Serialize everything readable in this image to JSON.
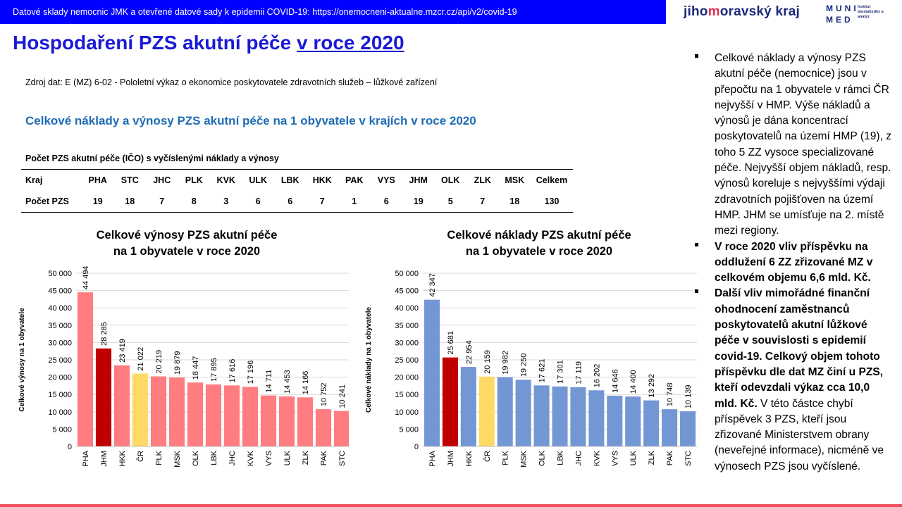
{
  "header": {
    "banner": "Datové sklady nemocnic JMK a otevřené datové sady k epidemii COVID-19: https://onemocneni-aktualne.mzcr.cz/api/v2/covid-19",
    "logo_jmk_a": "jiho",
    "logo_jmk_b": "m",
    "logo_jmk_c": "oravský kraj",
    "logo_muni_1": "MUNI",
    "logo_muni_2": "MED",
    "logo_muni_inst": "Institut biostatistiky a analýz"
  },
  "title_main": "Hospodaření PZS akutní péče ",
  "title_underlined": "v roce 2020",
  "source": "Zdroj dat: E (MZ) 6-02 - Pololetní výkaz o ekonomice poskytovatele zdravotních služeb – lůžkové zařízení",
  "subtitle": "Celkové náklady a výnosy PZS akutní péče na 1 obyvatele v krajích v roce 2020",
  "count_table": {
    "title": "Počet PZS akutní péče (IČO) s vyčíslenými náklady a výnosy",
    "header_label": "Kraj",
    "row_label": "Počet PZS",
    "columns": [
      "PHA",
      "STC",
      "JHC",
      "PLK",
      "KVK",
      "ULK",
      "LBK",
      "HKK",
      "PAK",
      "VYS",
      "JHM",
      "OLK",
      "ZLK",
      "MSK",
      "Celkem"
    ],
    "values": [
      "19",
      "18",
      "7",
      "8",
      "3",
      "6",
      "6",
      "7",
      "1",
      "6",
      "19",
      "5",
      "7",
      "18",
      "130"
    ]
  },
  "chart_data": [
    {
      "type": "bar",
      "title_line1": "Celkové výnosy PZS akutní péče",
      "title_line2": "na 1 obyvatele v roce 2020",
      "ylabel": "Celkové výnosy na 1 obyvatele",
      "ylim": [
        0,
        50000
      ],
      "yticks": [
        0,
        5000,
        10000,
        15000,
        20000,
        25000,
        30000,
        35000,
        40000,
        45000,
        50000
      ],
      "ytick_labels": [
        "0",
        "5 000",
        "10 000",
        "15 000",
        "20 000",
        "25 000",
        "30 000",
        "35 000",
        "40 000",
        "45 000",
        "50 000"
      ],
      "grid": true,
      "categories": [
        "PHA",
        "JHM",
        "HKK",
        "ČR",
        "PLK",
        "MSK",
        "OLK",
        "LBK",
        "JHC",
        "KVK",
        "VYS",
        "ULK",
        "ZLK",
        "PAK",
        "STC"
      ],
      "values": [
        44494,
        28285,
        23419,
        21022,
        20219,
        19879,
        18447,
        17895,
        17616,
        17196,
        14711,
        14453,
        14166,
        10752,
        10241
      ],
      "value_labels": [
        "44 494",
        "28 285",
        "23 419",
        "21 022",
        "20 219",
        "19 879",
        "18 447",
        "17 895",
        "17 616",
        "17 196",
        "14 711",
        "14 453",
        "14 166",
        "10 752",
        "10 241"
      ],
      "colors": {
        "default": "#ff7c80",
        "JHM": "#c00000",
        "ČR": "#ffd966"
      }
    },
    {
      "type": "bar",
      "title_line1": "Celkové náklady PZS akutní péče",
      "title_line2": "na 1 obyvatele v roce 2020",
      "ylabel": "Celkové náklady na 1 obyvatele",
      "ylim": [
        0,
        50000
      ],
      "yticks": [
        0,
        5000,
        10000,
        15000,
        20000,
        25000,
        30000,
        35000,
        40000,
        45000,
        50000
      ],
      "ytick_labels": [
        "0",
        "5 000",
        "10 000",
        "15 000",
        "20 000",
        "25 000",
        "30 000",
        "35 000",
        "40 000",
        "45 000",
        "50 000"
      ],
      "grid": true,
      "categories": [
        "PHA",
        "JHM",
        "HKK",
        "ČR",
        "PLK",
        "MSK",
        "OLK",
        "LBK",
        "JHC",
        "KVK",
        "VYS",
        "ULK",
        "ZLK",
        "PAK",
        "STC"
      ],
      "values": [
        42347,
        25681,
        22954,
        20159,
        19982,
        19250,
        17621,
        17301,
        17119,
        16202,
        14646,
        14400,
        13292,
        10748,
        10139
      ],
      "value_labels": [
        "42 347",
        "25 681",
        "22 954",
        "20 159",
        "19 982",
        "19 250",
        "17 621",
        "17 301",
        "17 119",
        "16 202",
        "14 646",
        "14 400",
        "13 292",
        "10 748",
        "10 139"
      ],
      "colors": {
        "default": "#7397d5",
        "JHM": "#c00000",
        "ČR": "#ffd966"
      }
    }
  ],
  "bullets": [
    {
      "text": "Celkové náklady a výnosy PZS akutní péče (nemocnice) jsou v přepočtu na 1 obyvatele v rámci ČR nejvyšší v HMP. Výše nákladů a výnosů je dána koncentrací poskytovatelů na území HMP (19), z toho 5 ZZ vysoce specializované péče. Nejvyšší objem nákladů, resp. výnosů koreluje s nejvyššími výdaji zdravotních pojišťoven na území HMP. JHM se umísťuje na 2. místě mezi regiony."
    },
    {
      "bold": "V roce 2020 vliv příspěvku na oddlužení 6 ZZ zřizované MZ v celkovém objemu 6,6 mld. Kč."
    },
    {
      "bold": "Další vliv mimořádné finanční ohodnocení zaměstnanců poskytovatelů akutní lůžkové péče v souvislosti s epidemií covid-19. Celkový objem tohoto příspěvku dle dat MZ činí u PZS, kteří odevzdali výkaz cca 10,0 mld. Kč.",
      "text": " V této částce chybí příspěvek 3 PZS, kteří jsou zřizované Ministerstvem obrany (neveřejné informace), nicméně ve výnosech PZS jsou vyčíslené."
    }
  ]
}
